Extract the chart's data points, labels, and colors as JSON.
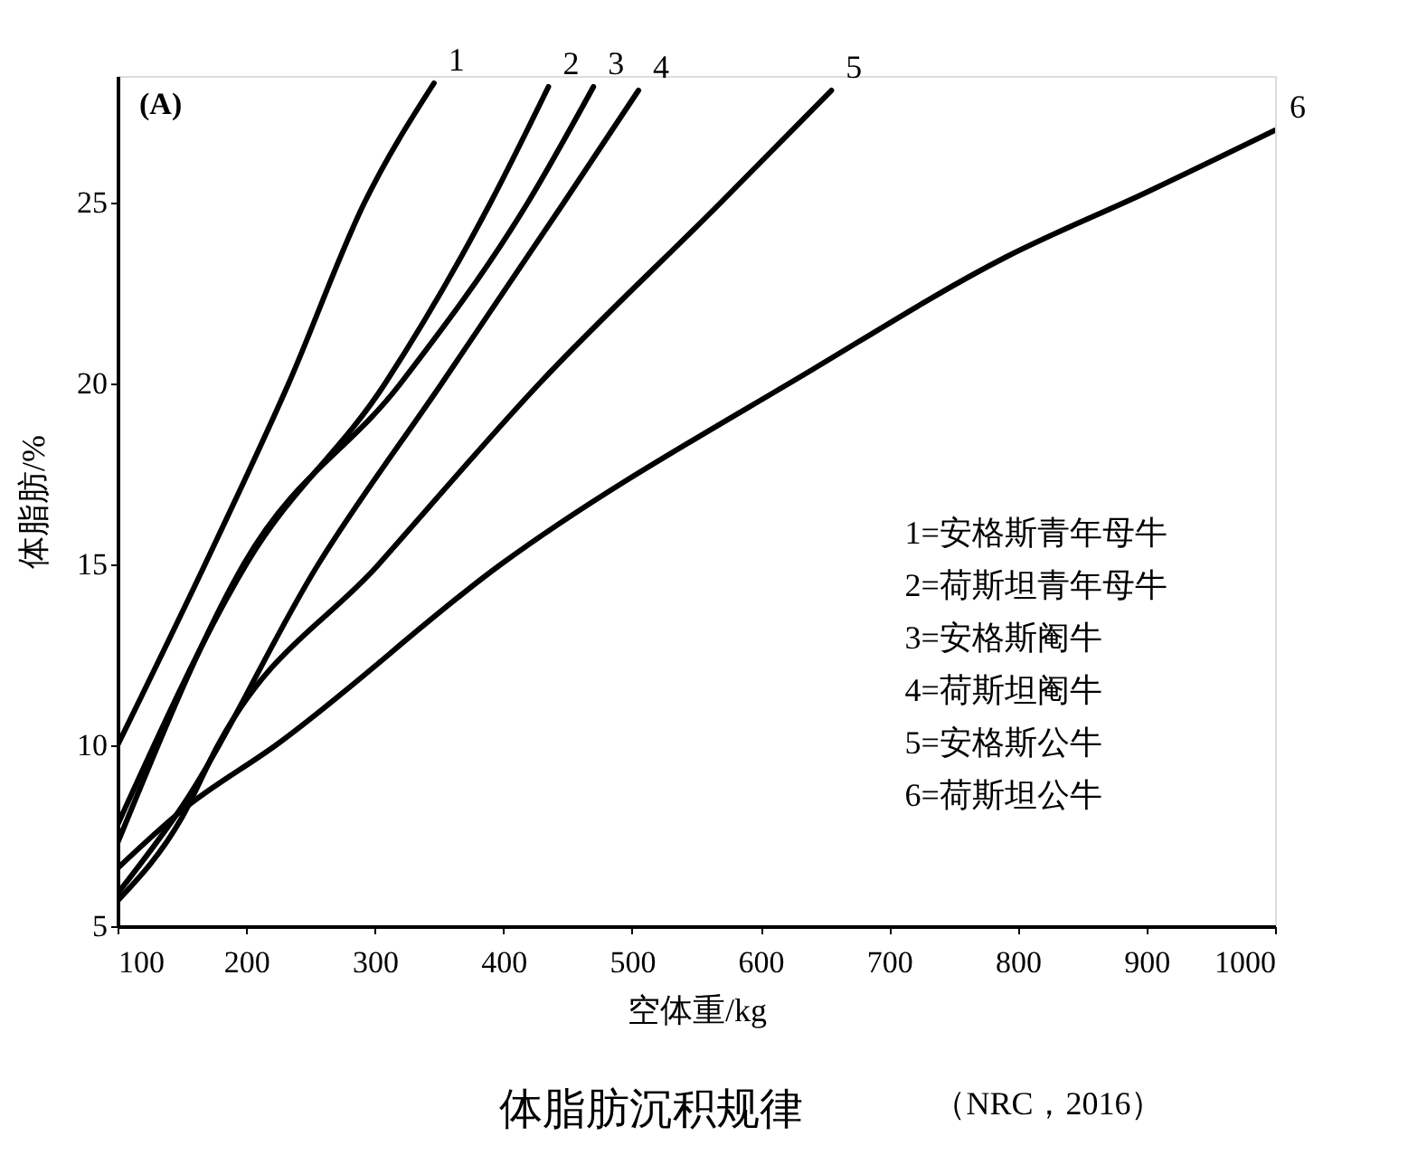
{
  "chart_data": {
    "type": "line",
    "xlabel": "空体重/kg",
    "ylabel": "体脂肪/%",
    "xlim": [
      100,
      1000
    ],
    "ylim": [
      5,
      28.5
    ],
    "xticks": [
      100,
      200,
      300,
      400,
      500,
      600,
      700,
      800,
      900,
      1000
    ],
    "yticks": [
      5,
      10,
      15,
      20,
      25
    ],
    "grid": false,
    "legend": false,
    "marker": "none",
    "line_style": "solid",
    "series": [
      {
        "name": "1",
        "color": "#000000",
        "x": [
          100,
          168,
          233,
          292,
          346
        ],
        "values": [
          10,
          15,
          20,
          25,
          28.3
        ]
      },
      {
        "name": "2",
        "color": "#000000",
        "x": [
          100,
          200,
          308,
          390,
          435
        ],
        "values": [
          7.8,
          15,
          20,
          25,
          28.2
        ]
      },
      {
        "name": "3",
        "color": "#000000",
        "x": [
          100,
          198,
          320,
          419,
          470
        ],
        "values": [
          7.3,
          15,
          20,
          25,
          28.2
        ]
      },
      {
        "name": "4",
        "color": "#000000",
        "x": [
          100,
          150,
          256,
          352,
          447,
          505
        ],
        "values": [
          5.9,
          8.3,
          15,
          20,
          25,
          28.1
        ]
      },
      {
        "name": "5",
        "color": "#000000",
        "x": [
          100,
          150,
          178,
          303,
          428,
          569,
          655
        ],
        "values": [
          5.7,
          8.0,
          10,
          15,
          20,
          25,
          28.1
        ]
      },
      {
        "name": "6",
        "color": "#000000",
        "x": [
          100,
          150,
          223,
          398,
          641,
          791,
          901,
          1000
        ],
        "values": [
          6.6,
          8.2,
          10,
          15,
          20.4,
          23.5,
          25.3,
          27
        ]
      }
    ],
    "annotations": [
      "(A)",
      "1=安格斯青年母牛",
      "2=荷斯坦青年母牛",
      "3=安格斯阉牛",
      "4=荷斯坦阉牛",
      "5=安格斯公牛",
      "6=荷斯坦公牛",
      "体脂肪沉积规律",
      "（NRC，2016）"
    ]
  }
}
